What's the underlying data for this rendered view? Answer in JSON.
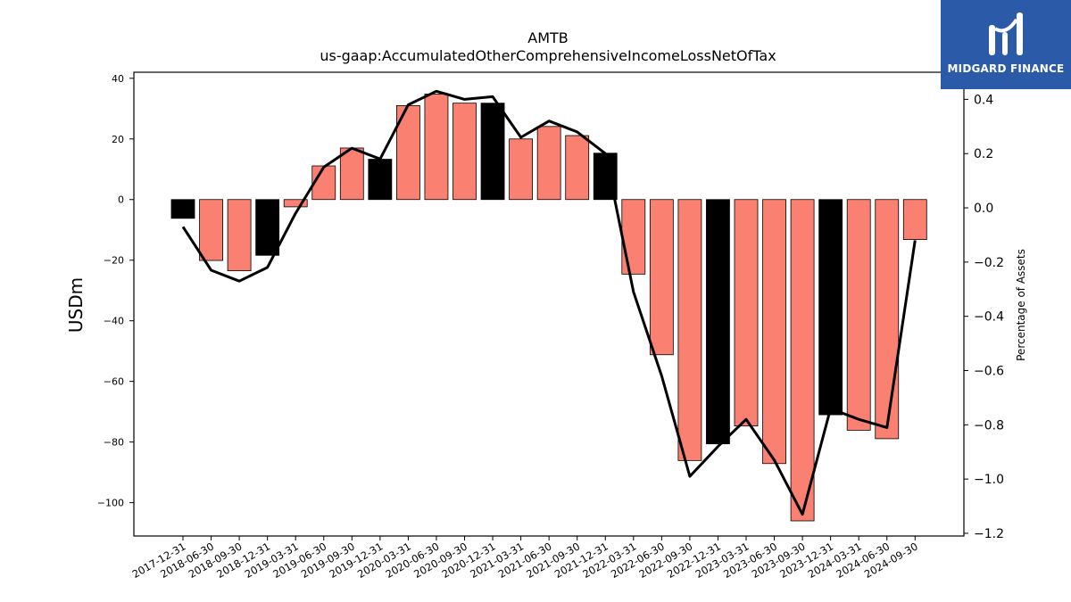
{
  "chart_data": {
    "type": "bar",
    "title": "AMTB",
    "subtitle": "us-gaap:AccumulatedOtherComprehensiveIncomeLossNetOfTax",
    "ylabel": "USDm",
    "y2label": "Percentage of Assets",
    "ylim": [
      -111,
      42
    ],
    "y2lim": [
      -1.21,
      0.5
    ],
    "yticks": [
      40,
      20,
      0,
      -20,
      -40,
      -60,
      -80,
      -100
    ],
    "ytick_labels": [
      "40",
      "20",
      "0",
      "−20",
      "−40",
      "−60",
      "−80",
      "−100"
    ],
    "y2ticks": [
      0.4,
      0.2,
      0.0,
      -0.2,
      -0.4,
      -0.6,
      -0.8,
      -1.0,
      -1.2
    ],
    "y2tick_labels": [
      "0.4",
      "0.2",
      "0.0",
      "−0.2",
      "−0.4",
      "−0.6",
      "−0.8",
      "−1.0",
      "−1.2"
    ],
    "categories": [
      "2017-12-31",
      "2018-06-30",
      "2018-09-30",
      "2018-12-31",
      "2019-03-31",
      "2019-06-30",
      "2019-09-30",
      "2019-12-31",
      "2020-03-31",
      "2020-06-30",
      "2020-09-30",
      "2020-12-31",
      "2021-03-31",
      "2021-06-30",
      "2021-09-30",
      "2021-12-31",
      "2022-03-31",
      "2022-06-30",
      "2022-09-30",
      "2022-12-31",
      "2023-03-31",
      "2023-06-30",
      "2023-09-30",
      "2023-12-31",
      "2024-03-31",
      "2024-06-30",
      "2024-09-30"
    ],
    "values": [
      -6.2,
      -20.1,
      -23.5,
      -18.4,
      -2.4,
      11.1,
      17.0,
      13.3,
      31.0,
      34.8,
      31.8,
      31.8,
      20.0,
      24.1,
      21.1,
      15.3,
      -24.6,
      -51.2,
      -86.1,
      -80.6,
      -74.7,
      -87.1,
      -106.0,
      -71.0,
      -76.1,
      -78.9,
      -13.2
    ],
    "percent_of_assets": [
      -0.07,
      -0.23,
      -0.27,
      -0.22,
      -0.02,
      0.15,
      0.22,
      0.18,
      0.38,
      0.43,
      0.4,
      0.41,
      0.26,
      0.32,
      0.28,
      0.2,
      -0.31,
      -0.62,
      -0.99,
      -0.88,
      -0.78,
      -0.93,
      -1.13,
      -0.74,
      -0.78,
      -0.81,
      -0.12
    ],
    "highlight_categories": [
      "2017-12-31",
      "2018-12-31",
      "2019-12-31",
      "2020-12-31",
      "2021-12-31",
      "2022-12-31",
      "2023-12-31"
    ],
    "colors": {
      "bar": "#fa8072",
      "highlight_bar": "#000000",
      "line": "#000000",
      "bar_edge": "#000000"
    }
  },
  "logo": {
    "text": "MIDGARD FINANCE",
    "color": "#2b5aa8"
  }
}
